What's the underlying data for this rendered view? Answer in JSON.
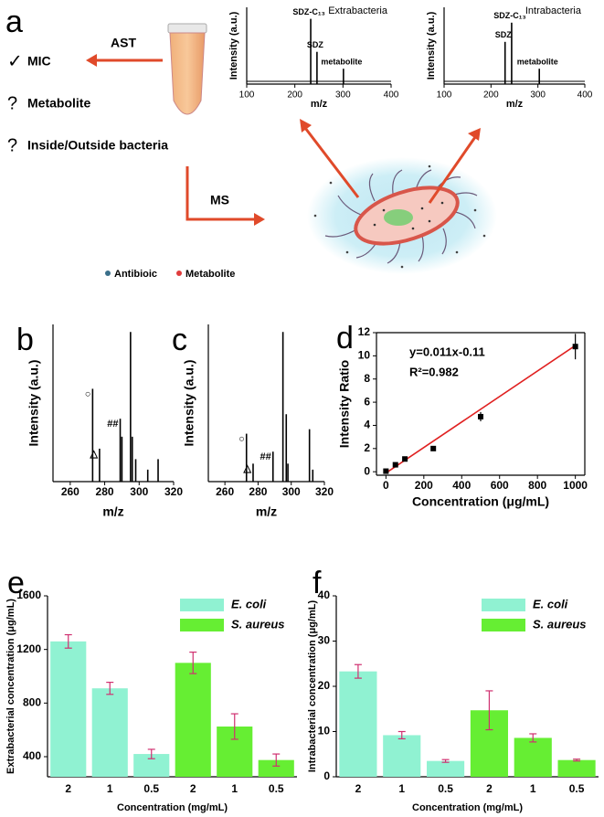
{
  "panel_a": {
    "label": "a",
    "ast": "AST",
    "check": "✓",
    "mic": "MIC",
    "q1": "?",
    "metabolite": "Metabolite",
    "q2": "?",
    "inside": "Inside/Outside bacteria",
    "ms": "MS",
    "legend": [
      {
        "name": "Antibioic",
        "color": "#3a6f8a"
      },
      {
        "name": "Metabolite",
        "color": "#e03c3c"
      }
    ]
  },
  "chart_data": [
    {
      "type": "stem",
      "title": "Extrabacteria",
      "ylabel": "Intensity (a.u.)",
      "xlabel": "m/z",
      "color": "#000000",
      "x": [
        233,
        246,
        301
      ],
      "values": [
        0.85,
        0.42,
        0.2
      ],
      "peak_labels": [
        "SDZ-C₁₃",
        "SDZ",
        "metabolite"
      ],
      "xlim": [
        100,
        400
      ],
      "xticks": [
        100,
        200,
        300,
        400
      ],
      "ylim": [
        0,
        1
      ]
    },
    {
      "type": "stem",
      "title": "Intrabacteria",
      "ylabel": "Intensity (a.u.)",
      "xlabel": "m/z",
      "color": "#000000",
      "x": [
        230,
        244,
        303
      ],
      "values": [
        0.55,
        0.8,
        0.2
      ],
      "peak_labels": [
        "SDZ",
        "SDZ-C₁₃",
        "metabolite"
      ],
      "xlim": [
        100,
        400
      ],
      "xticks": [
        100,
        200,
        300,
        400
      ],
      "ylim": [
        0,
        1
      ]
    },
    {
      "type": "stem",
      "panel_label": "b",
      "ylabel": "Intensity (a.u.)",
      "xlabel": "m/z",
      "color": "#000000",
      "x": [
        273,
        277,
        289,
        290,
        295,
        296,
        298,
        305,
        311
      ],
      "values": [
        0.62,
        0.22,
        0.42,
        0.3,
        1.0,
        0.3,
        0.15,
        0.08,
        0.15
      ],
      "peak_labels": [
        "○",
        "△",
        "##",
        null,
        null,
        null,
        null,
        null,
        null
      ],
      "xlim": [
        250,
        320
      ],
      "xticks": [
        260,
        280,
        300,
        320
      ],
      "ylim": [
        0,
        1.05
      ]
    },
    {
      "type": "stem",
      "panel_label": "c",
      "ylabel": "Intensity (a.u.)",
      "xlabel": "m/z",
      "color": "#000000",
      "x": [
        273,
        277,
        289,
        295,
        297,
        298,
        311,
        313
      ],
      "values": [
        0.32,
        0.12,
        0.2,
        1.0,
        0.45,
        0.12,
        0.35,
        0.08
      ],
      "peak_labels": [
        "○",
        "△",
        "##",
        null,
        null,
        null,
        null,
        null
      ],
      "xlim": [
        250,
        320
      ],
      "xticks": [
        260,
        280,
        300,
        320
      ],
      "ylim": [
        0,
        1.05
      ]
    },
    {
      "type": "scatter",
      "panel_label": "d",
      "ylabel": "Intensity Ratio",
      "xlabel": "Concentration (μg/mL)",
      "color": "#000000",
      "x": [
        0,
        50,
        100,
        250,
        500,
        1000
      ],
      "values": [
        0.05,
        0.6,
        1.1,
        2.0,
        4.75,
        10.8
      ],
      "errors": [
        0.1,
        0.1,
        0.1,
        0.1,
        0.4,
        1.1
      ],
      "fit": {
        "x": [
          0,
          1000
        ],
        "y": [
          -0.11,
          10.89
        ],
        "color": "#e02020"
      },
      "equation": "y=0.011x-0.11",
      "r2": "R²=0.982",
      "xlim": [
        -50,
        1050
      ],
      "xticks": [
        0,
        200,
        400,
        600,
        800,
        1000
      ],
      "ylim": [
        -0.3,
        12
      ],
      "yticks": [
        0,
        2,
        4,
        6,
        8,
        10,
        12
      ]
    },
    {
      "type": "bar",
      "panel_label": "e",
      "ylabel": "Extrabacterial concentration (μg/mL)",
      "xlabel": "Concentration (mg/mL)",
      "categories": [
        "2",
        "1",
        "0.5",
        "2",
        "1",
        "0.5"
      ],
      "series": [
        {
          "name": "E. coli",
          "color": "#90f2d2",
          "values": [
            1260,
            910,
            420,
            null,
            null,
            null
          ],
          "errors": [
            50,
            45,
            35,
            null,
            null,
            null
          ]
        },
        {
          "name": "S. aureus",
          "color": "#66ee33",
          "values": [
            null,
            null,
            null,
            1100,
            625,
            375
          ],
          "errors": [
            null,
            null,
            null,
            80,
            95,
            45
          ]
        }
      ],
      "error_color": "#d03070",
      "legend": "upper right",
      "ylim": [
        250,
        1600
      ],
      "yticks": [
        400,
        800,
        1200,
        1600
      ]
    },
    {
      "type": "bar",
      "panel_label": "f",
      "ylabel": "Intrabacterial concentration (μg/mL)",
      "xlabel": "Concentration (mg/mL)",
      "categories": [
        "2",
        "1",
        "0.5",
        "2",
        "1",
        "0.5"
      ],
      "series": [
        {
          "name": "E. coli",
          "color": "#90f2d2",
          "values": [
            23.3,
            9.2,
            3.5,
            null,
            null,
            null
          ],
          "errors": [
            1.5,
            0.8,
            0.3,
            null,
            null,
            null
          ]
        },
        {
          "name": "S. aureus",
          "color": "#66ee33",
          "values": [
            null,
            null,
            null,
            14.7,
            8.6,
            3.7
          ],
          "errors": [
            null,
            null,
            null,
            4.3,
            0.9,
            0.2
          ]
        }
      ],
      "error_color": "#d03070",
      "legend": "upper right",
      "ylim": [
        0,
        40
      ],
      "yticks": [
        0,
        10,
        20,
        30,
        40
      ]
    }
  ]
}
